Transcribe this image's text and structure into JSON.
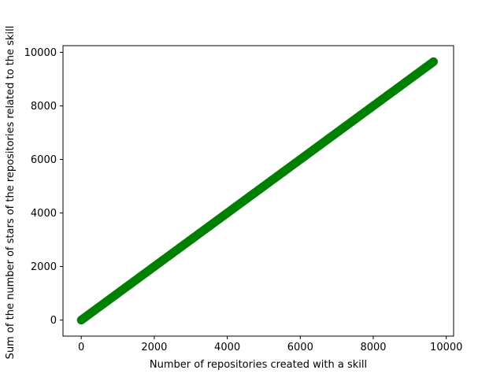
{
  "chart_data": {
    "type": "scatter",
    "title": "",
    "xlabel": "Number of repositories created with a skill",
    "ylabel": "Sum of the number of stars of the repositories related to the skill",
    "xlim": [
      -500,
      10200
    ],
    "ylim": [
      -600,
      10250
    ],
    "xticks": [
      0,
      2000,
      4000,
      6000,
      8000,
      10000
    ],
    "xtick_labels": [
      "0",
      "2000",
      "4000",
      "6000",
      "8000",
      "10000"
    ],
    "yticks": [
      0,
      2000,
      4000,
      6000,
      8000,
      10000
    ],
    "ytick_labels": [
      "0",
      "2000",
      "4000",
      "6000",
      "8000",
      "10000"
    ],
    "grid": false,
    "legend": "none",
    "marker_color": "#008000",
    "series": [
      {
        "x_range": [
          0,
          9650
        ],
        "y_range": [
          0,
          9650
        ],
        "relation": "y = x",
        "step": 25
      }
    ]
  }
}
